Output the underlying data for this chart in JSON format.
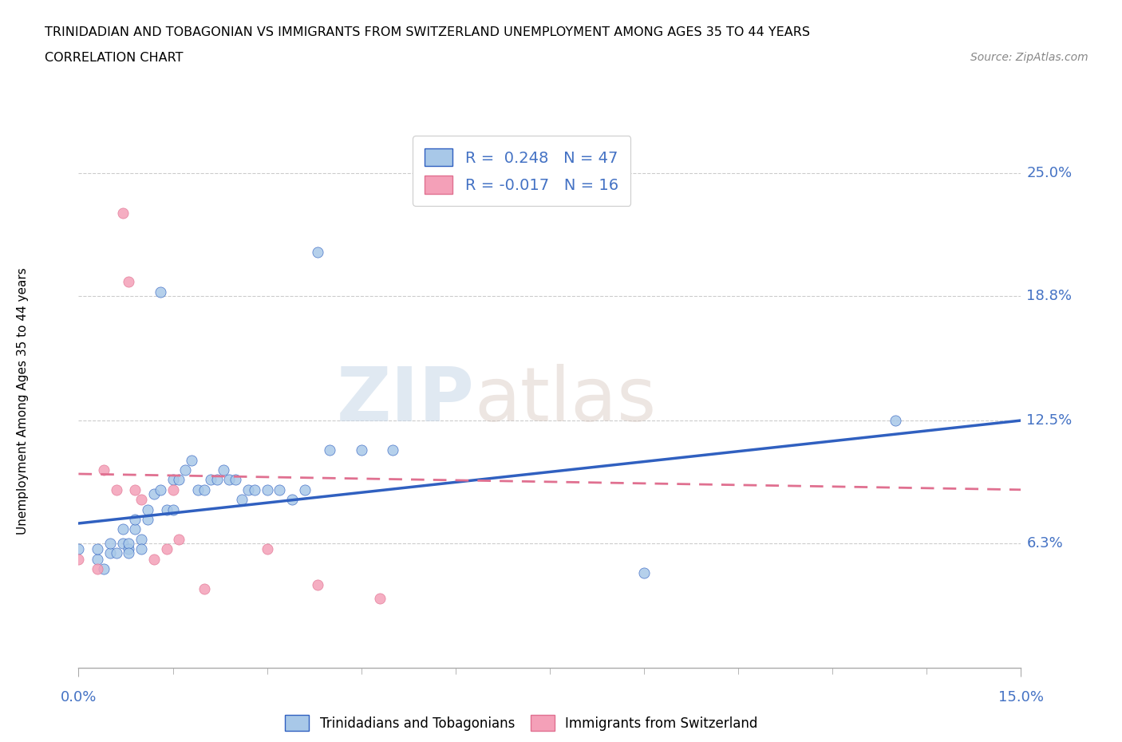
{
  "title_line1": "TRINIDADIAN AND TOBAGONIAN VS IMMIGRANTS FROM SWITZERLAND UNEMPLOYMENT AMONG AGES 35 TO 44 YEARS",
  "title_line2": "CORRELATION CHART",
  "source_text": "Source: ZipAtlas.com",
  "ylabel": "Unemployment Among Ages 35 to 44 years",
  "xlim": [
    0.0,
    0.15
  ],
  "ylim": [
    0.0,
    0.27
  ],
  "yticks": [
    0.063,
    0.125,
    0.188,
    0.25
  ],
  "ytick_labels": [
    "6.3%",
    "12.5%",
    "18.8%",
    "25.0%"
  ],
  "r_blue": 0.248,
  "n_blue": 47,
  "r_pink": -0.017,
  "n_pink": 16,
  "blue_color": "#a8c8e8",
  "pink_color": "#f4a0b8",
  "line_blue": "#3060c0",
  "line_pink": "#e07090",
  "watermark_zip": "ZIP",
  "watermark_atlas": "atlas",
  "blue_scatter_x": [
    0.0,
    0.003,
    0.003,
    0.004,
    0.005,
    0.005,
    0.006,
    0.007,
    0.007,
    0.008,
    0.008,
    0.008,
    0.009,
    0.009,
    0.01,
    0.01,
    0.011,
    0.011,
    0.012,
    0.013,
    0.013,
    0.014,
    0.015,
    0.015,
    0.016,
    0.017,
    0.018,
    0.019,
    0.02,
    0.021,
    0.022,
    0.023,
    0.024,
    0.025,
    0.026,
    0.027,
    0.028,
    0.03,
    0.032,
    0.034,
    0.036,
    0.038,
    0.04,
    0.045,
    0.05,
    0.09,
    0.13
  ],
  "blue_scatter_y": [
    0.06,
    0.055,
    0.06,
    0.05,
    0.058,
    0.063,
    0.058,
    0.063,
    0.07,
    0.06,
    0.063,
    0.058,
    0.07,
    0.075,
    0.065,
    0.06,
    0.075,
    0.08,
    0.088,
    0.19,
    0.09,
    0.08,
    0.08,
    0.095,
    0.095,
    0.1,
    0.105,
    0.09,
    0.09,
    0.095,
    0.095,
    0.1,
    0.095,
    0.095,
    0.085,
    0.09,
    0.09,
    0.09,
    0.09,
    0.085,
    0.09,
    0.21,
    0.11,
    0.11,
    0.11,
    0.048,
    0.125
  ],
  "pink_scatter_x": [
    0.0,
    0.003,
    0.004,
    0.006,
    0.007,
    0.008,
    0.009,
    0.01,
    0.012,
    0.014,
    0.015,
    0.016,
    0.02,
    0.03,
    0.038,
    0.048
  ],
  "pink_scatter_y": [
    0.055,
    0.05,
    0.1,
    0.09,
    0.23,
    0.195,
    0.09,
    0.085,
    0.055,
    0.06,
    0.09,
    0.065,
    0.04,
    0.06,
    0.042,
    0.035
  ],
  "blue_line_x0": 0.0,
  "blue_line_y0": 0.073,
  "blue_line_x1": 0.15,
  "blue_line_y1": 0.125,
  "pink_line_x0": 0.0,
  "pink_line_y0": 0.098,
  "pink_line_x1": 0.15,
  "pink_line_y1": 0.09
}
